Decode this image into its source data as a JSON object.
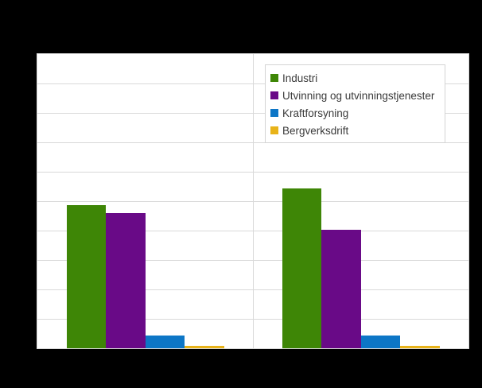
{
  "chart_data": {
    "type": "bar",
    "title": "",
    "categories": [
      "",
      ""
    ],
    "series": [
      {
        "name": "Industri",
        "color": "#3e8606",
        "values": [
          48.7,
          54.2
        ]
      },
      {
        "name": "Utvinning og utvinningstjenester",
        "color": "#690a87",
        "values": [
          46.0,
          40.4
        ]
      },
      {
        "name": "Kraftforsyning",
        "color": "#0d76c6",
        "values": [
          4.3,
          4.4
        ]
      },
      {
        "name": "Bergverksdrift",
        "color": "#e8b319",
        "values": [
          0.7,
          0.8
        ]
      }
    ],
    "ylim": [
      0,
      100
    ],
    "y_gridline_divisions": 10,
    "grid": "horizontal gridlines plus one vertical center gridline",
    "legend_position": "inside top-right",
    "axis_tick_labels_visible": false,
    "note": "title and axis tick labels are not visible in the image (black text on black background)"
  },
  "colors": {
    "canvas_background": "#000000",
    "plot_background": "#ffffff",
    "gridline": "#d9d9d9",
    "legend_border": "#d4d4d4",
    "legend_text": "#3a3a3a"
  }
}
